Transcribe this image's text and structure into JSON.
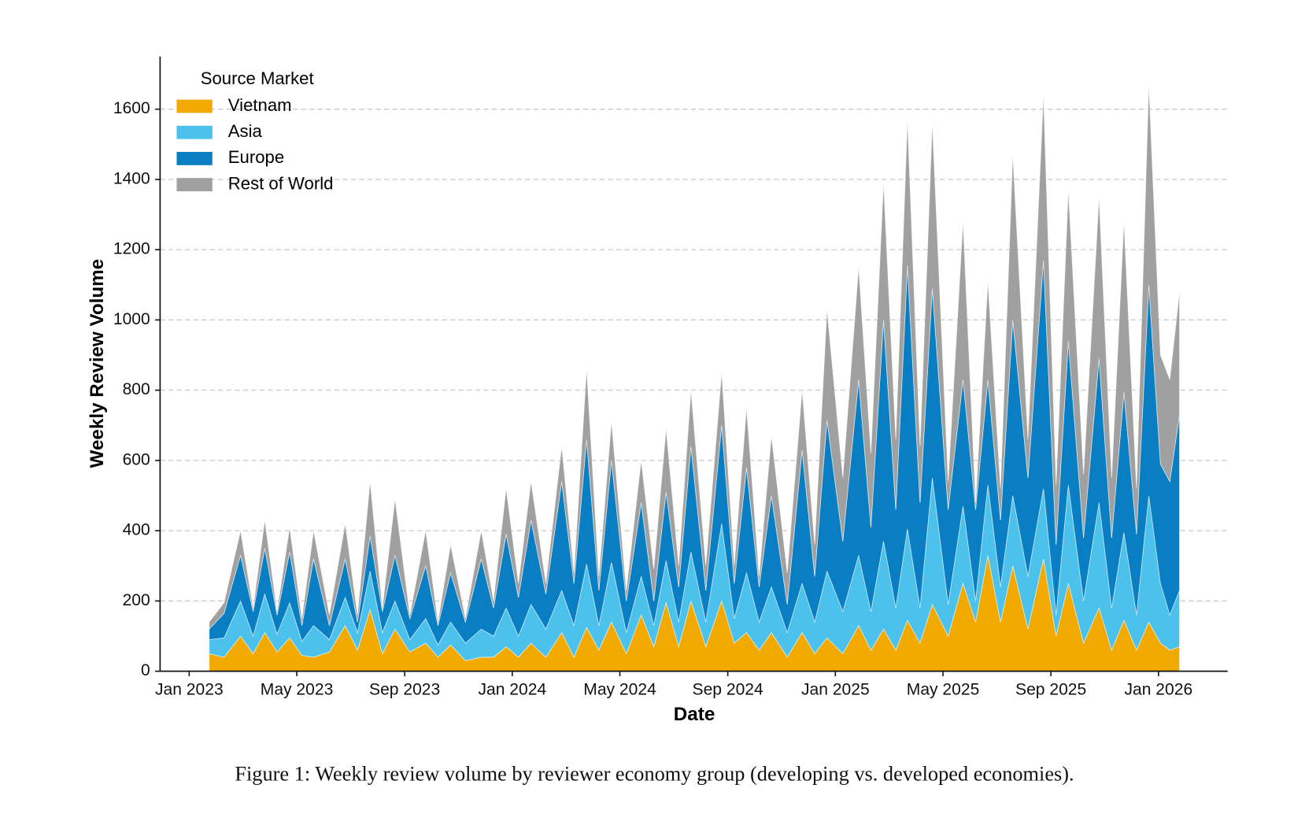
{
  "chart_data": {
    "type": "stacked-area",
    "y_label": "Weekly Review Volume",
    "x_label": "Date",
    "legend_title": "Source Market",
    "legend_position": "upper left",
    "grid": true,
    "caption": "Figure 1: Weekly review volume by reviewer economy group (developing vs. developed economies).",
    "xlim": [
      2022.91,
      2026.214
    ],
    "ylim": [
      0,
      1750
    ],
    "yticks": [
      0,
      200,
      400,
      600,
      800,
      1000,
      1200,
      1400,
      1600
    ],
    "xticks": [
      {
        "value": 2023,
        "label": "Jan 2023"
      },
      {
        "value": 2023.333,
        "label": "May 2023"
      },
      {
        "value": 2023.667,
        "label": "Sep 2023"
      },
      {
        "value": 2024,
        "label": "Jan 2024"
      },
      {
        "value": 2024.333,
        "label": "May 2024"
      },
      {
        "value": 2024.667,
        "label": "Sep 2024"
      },
      {
        "value": 2025,
        "label": "Jan 2025"
      },
      {
        "value": 2025.333,
        "label": "May 2025"
      },
      {
        "value": 2025.667,
        "label": "Sep 2025"
      },
      {
        "value": 2026,
        "label": "Jan 2026"
      }
    ],
    "x": [
      2023.062,
      2023.108,
      2023.159,
      2023.198,
      2023.234,
      2023.272,
      2023.311,
      2023.349,
      2023.385,
      2023.434,
      2023.483,
      2023.521,
      2023.56,
      2023.598,
      2023.637,
      2023.683,
      2023.732,
      2023.77,
      2023.809,
      2023.855,
      2023.904,
      2023.942,
      2023.981,
      2024.019,
      2024.058,
      2024.104,
      2024.153,
      2024.191,
      2024.23,
      2024.268,
      2024.307,
      2024.353,
      2024.399,
      2024.438,
      2024.476,
      2024.515,
      2024.553,
      2024.599,
      2024.648,
      2024.687,
      2024.725,
      2024.764,
      2024.802,
      2024.851,
      2024.897,
      2024.936,
      2024.974,
      2025.023,
      2025.072,
      2025.11,
      2025.149,
      2025.187,
      2025.223,
      2025.262,
      2025.3,
      2025.349,
      2025.395,
      2025.434,
      2025.472,
      2025.511,
      2025.549,
      2025.596,
      2025.644,
      2025.683,
      2025.721,
      2025.768,
      2025.816,
      2025.855,
      2025.893,
      2025.932,
      2025.97,
      2026.006,
      2026.035,
      2026.065
    ],
    "series": [
      {
        "name": "Vietnam",
        "color": "#f2a900",
        "values": [
          50,
          40,
          100,
          50,
          110,
          55,
          95,
          45,
          40,
          55,
          130,
          60,
          175,
          50,
          120,
          55,
          80,
          40,
          75,
          30,
          40,
          40,
          70,
          40,
          80,
          40,
          110,
          40,
          125,
          60,
          140,
          50,
          160,
          70,
          195,
          70,
          200,
          70,
          200,
          80,
          110,
          60,
          110,
          40,
          110,
          50,
          95,
          50,
          130,
          60,
          120,
          60,
          145,
          80,
          190,
          100,
          250,
          140,
          330,
          140,
          300,
          120,
          320,
          100,
          250,
          80,
          180,
          60,
          145,
          60,
          140,
          80,
          60,
          70
        ]
      },
      {
        "name": "Asia",
        "color": "#4cc1ec",
        "values": [
          40,
          55,
          100,
          50,
          110,
          50,
          100,
          40,
          90,
          35,
          80,
          50,
          110,
          60,
          80,
          35,
          70,
          35,
          65,
          50,
          80,
          60,
          110,
          60,
          110,
          80,
          120,
          90,
          180,
          70,
          170,
          60,
          110,
          60,
          120,
          70,
          140,
          70,
          220,
          70,
          170,
          80,
          130,
          70,
          140,
          90,
          190,
          120,
          200,
          110,
          250,
          120,
          260,
          100,
          360,
          90,
          220,
          60,
          200,
          100,
          200,
          150,
          200,
          60,
          280,
          120,
          300,
          120,
          250,
          100,
          360,
          170,
          100,
          160
        ]
      },
      {
        "name": "Europe",
        "color": "#0a7ec2",
        "values": [
          30,
          70,
          130,
          70,
          130,
          55,
          145,
          45,
          190,
          40,
          110,
          30,
          100,
          60,
          130,
          60,
          150,
          55,
          140,
          60,
          200,
          80,
          210,
          110,
          240,
          100,
          310,
          120,
          355,
          100,
          290,
          90,
          210,
          70,
          195,
          100,
          300,
          90,
          280,
          100,
          300,
          100,
          260,
          80,
          380,
          130,
          430,
          200,
          500,
          240,
          630,
          280,
          750,
          300,
          540,
          270,
          360,
          260,
          300,
          190,
          500,
          280,
          650,
          200,
          410,
          180,
          410,
          200,
          400,
          230,
          600,
          340,
          380,
          500
        ]
      },
      {
        "name": "Rest of World",
        "color": "#a0a0a0",
        "values": [
          20,
          30,
          70,
          10,
          80,
          10,
          70,
          20,
          80,
          30,
          100,
          20,
          155,
          10,
          160,
          10,
          100,
          10,
          80,
          10,
          80,
          20,
          130,
          40,
          110,
          30,
          100,
          30,
          200,
          40,
          110,
          30,
          120,
          90,
          180,
          60,
          160,
          70,
          150,
          50,
          170,
          30,
          170,
          90,
          170,
          90,
          315,
          180,
          320,
          210,
          390,
          200,
          415,
          160,
          470,
          80,
          450,
          20,
          280,
          90,
          470,
          110,
          470,
          170,
          430,
          180,
          460,
          170,
          485,
          130,
          570,
          310,
          290,
          350
        ]
      }
    ]
  }
}
